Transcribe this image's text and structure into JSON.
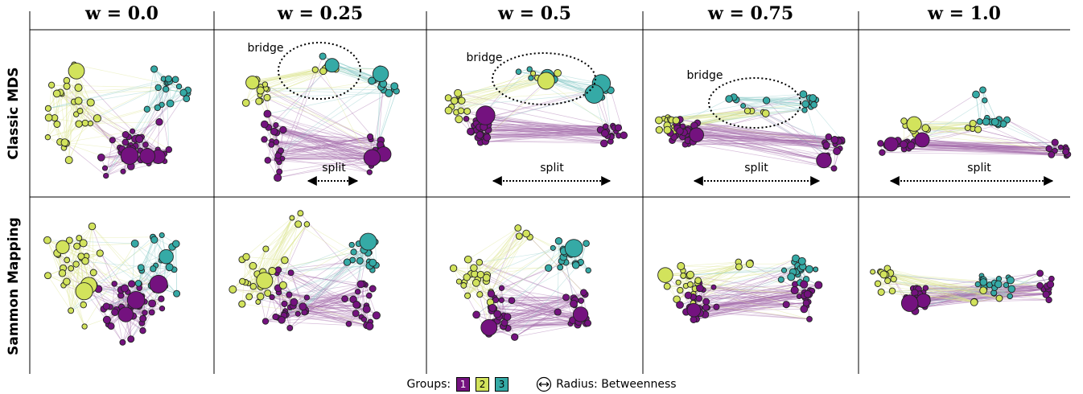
{
  "columns": [
    "w = 0.0",
    "w = 0.25",
    "w = 0.5",
    "w = 0.75",
    "w = 1.0"
  ],
  "rows": [
    "Classic MDS",
    "Sammon Mapping"
  ],
  "annotations": {
    "bridge": "bridge",
    "split": "split"
  },
  "legend": {
    "groups_label": "Groups:",
    "groups": [
      {
        "label": "1",
        "color": "#74127f"
      },
      {
        "label": "2",
        "color": "#d2e35c"
      },
      {
        "label": "3",
        "color": "#35aaa6"
      }
    ],
    "radius_label": "Radius: Betweenness"
  },
  "edge_colors": [
    "#a66fae",
    "#dbe58d",
    "#8fcbc9"
  ]
}
